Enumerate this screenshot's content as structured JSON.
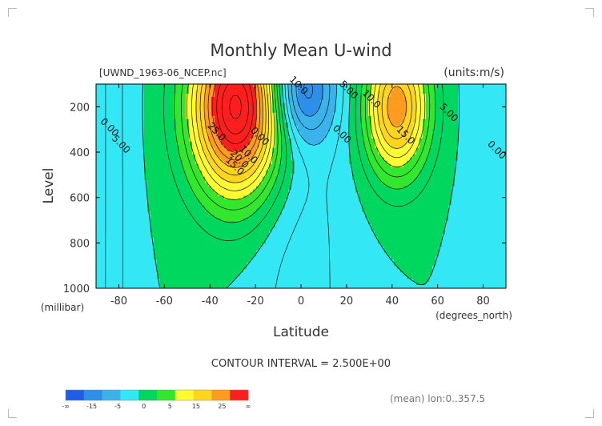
{
  "chart_data": {
    "type": "heatmap",
    "title": "Monthly Mean U-wind",
    "source_label": "[UWND_1963-06_NCEP.nc]",
    "units_label": "(units:m/s)",
    "xlabel": "Latitude",
    "x_unit_label": "(degrees_north)",
    "ylabel": "Level",
    "y_unit_label": "(millibar)",
    "x_ticks": [
      -80,
      -60,
      -40,
      -20,
      0,
      20,
      40,
      60,
      80
    ],
    "x_tick_labels": [
      "-80",
      "-60",
      "-40",
      "-20",
      "0",
      "20",
      "40",
      "60",
      "80"
    ],
    "y_ticks": [
      200,
      400,
      600,
      800,
      1000
    ],
    "y_tick_labels": [
      "200",
      "400",
      "600",
      "800",
      "1000"
    ],
    "xlim": [
      -90,
      90
    ],
    "ylim": [
      1000,
      100
    ],
    "contour_interval_text": "CONTOUR INTERVAL = 2.500E+00",
    "footer_note": "(mean) lon:0..357.5",
    "contour_labels": [
      {
        "text": "10.0",
        "lat": -2,
        "lev": 115
      },
      {
        "text": "5.00",
        "lat": 20,
        "lev": 135
      },
      {
        "text": "10.0",
        "lat": 30,
        "lev": 175
      },
      {
        "text": "5.00",
        "lat": 64,
        "lev": 235
      },
      {
        "text": "15.0",
        "lat": 45,
        "lev": 335
      },
      {
        "text": "0.00",
        "lat": 17,
        "lev": 330
      },
      {
        "text": "0.00",
        "lat": 85,
        "lev": 400
      },
      {
        "text": "0.00",
        "lat": -85,
        "lev": 300
      },
      {
        "text": "5.00",
        "lat": -80,
        "lev": 375
      },
      {
        "text": "25.0",
        "lat": -38,
        "lev": 320
      },
      {
        "text": "20.0",
        "lat": -28,
        "lev": 440
      },
      {
        "text": "15.0",
        "lat": -30,
        "lev": 470
      },
      {
        "text": "10.0",
        "lat": -24,
        "lev": 420
      },
      {
        "text": "0.00",
        "lat": -19,
        "lev": 340
      }
    ],
    "colorbar": {
      "colors": [
        "#1c5ee6",
        "#2e8fe8",
        "#3bb3ea",
        "#33e8f4",
        "#00d75f",
        "#33e62e",
        "#fffb33",
        "#ffd51e",
        "#ff9b1e",
        "#ff1e1e"
      ],
      "labels": [
        "-∞",
        "-15",
        "-5",
        "0",
        "5",
        "15",
        "25",
        "∞"
      ]
    },
    "color_levels": [
      -15,
      -10,
      -5,
      0,
      5,
      10,
      15,
      20,
      25
    ],
    "fields": {
      "southern_jet": {
        "lat": -28,
        "lev": 200,
        "max": 34
      },
      "northern_jet": {
        "lat": 42,
        "lev": 200,
        "max": 22
      },
      "tropical_easterlies": {
        "lat": 0,
        "min": -13
      }
    }
  }
}
